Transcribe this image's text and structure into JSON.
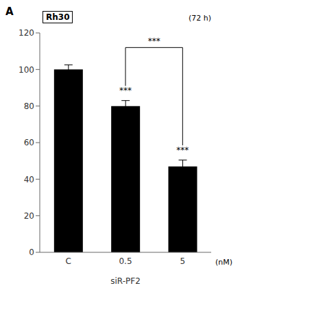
{
  "chart_data": {
    "type": "bar",
    "categories": [
      "C",
      "0.5",
      "5"
    ],
    "values": [
      100,
      80,
      47
    ],
    "errors": [
      2.5,
      3.0,
      3.5
    ],
    "color": "#000000",
    "xlabel": "siR-PF2",
    "xlabel_suffix": "(nM)",
    "title_box": "Rh30",
    "time_label": "(72 h)",
    "panel_label": "A",
    "ylim": [
      0,
      120
    ],
    "yticks": [
      0,
      20,
      40,
      60,
      80,
      100,
      120
    ],
    "grid": false,
    "annotations": [
      {
        "text": "***",
        "category": "0.5"
      },
      {
        "text": "***",
        "category": "5"
      }
    ],
    "bracket": {
      "from": "0.5",
      "to": "5",
      "y": 112,
      "label": "***"
    }
  }
}
